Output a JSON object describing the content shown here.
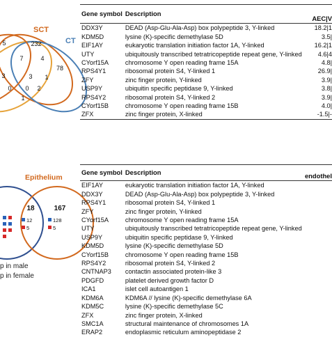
{
  "venn_top": {
    "labels": {
      "sct": "SCT",
      "ct": "CT"
    },
    "numbers": [
      "5",
      "232",
      "7",
      "4",
      "78",
      "3",
      "3",
      "1",
      "0",
      "2",
      "1",
      "0"
    ],
    "colors": {
      "sct": "#d2691e",
      "ct": "#4a7fb5",
      "left": "#e6a33a"
    }
  },
  "venn_bottom": {
    "label": "Epithelium",
    "numbers": [
      "18",
      "167",
      "12",
      "128",
      "5",
      "5"
    ],
    "colors": {
      "epithelium": "#d2691e",
      "left": "#2f4f8f",
      "blue_square": "#2a62b8",
      "red_square": "#d62828"
    }
  },
  "legend": [
    "p in male",
    "p in female"
  ],
  "table1": {
    "headers": [
      "Gene symbol",
      "Description",
      "AEC|V"
    ],
    "rows": [
      {
        "sym": "DDX3Y",
        "desc": "DEAD (Asp-Glu-Ala-Asp) box polypeptide 3, Y-linked",
        "val": "18.2|1"
      },
      {
        "sym": "KDM5D",
        "desc": "lysine (K)-specific demethylase 5D",
        "val": "3.5|"
      },
      {
        "sym": "EIF1AY",
        "desc": "eukaryotic translation initiation factor 1A, Y-linked",
        "val": "16.2|1"
      },
      {
        "sym": "UTY",
        "desc": "ubiquitously transcribed tetratricopeptide repeat gene, Y-linked",
        "val": "4.6|4"
      },
      {
        "sym": "CYorf15A",
        "desc": "chromosome Y open reading frame 15A",
        "val": "4.8|"
      },
      {
        "sym": "RPS4Y1",
        "desc": "ribosomal protein S4, Y-linked 1",
        "val": "26.9|"
      },
      {
        "sym": "ZFY",
        "desc": "zinc finger protein, Y-linked",
        "val": "3.9|"
      },
      {
        "sym": "USP9Y",
        "desc": "ubiquitin specific peptidase 9, Y-linked",
        "val": "3.8|"
      },
      {
        "sym": "RPS4Y2",
        "desc": "ribosomal protein S4, Y-linked 2",
        "val": "3.9|"
      },
      {
        "sym": "CYorf15B",
        "desc": "chromosome Y open reading frame 15B",
        "val": "4.0|"
      },
      {
        "sym": "ZFX",
        "desc": "zinc finger protein, X-linked",
        "val": "-1.5|-"
      }
    ]
  },
  "table2": {
    "headers": [
      "Gene symbol",
      "Description",
      "endothel"
    ],
    "rows": [
      {
        "sym": "EIF1AY",
        "desc": "eukaryotic translation initiation factor 1A, Y-linked"
      },
      {
        "sym": "DDX3Y",
        "desc": "DEAD (Asp-Glu-Ala-Asp) box polypeptide 3, Y-linked"
      },
      {
        "sym": "RPS4Y1",
        "desc": "ribosomal protein S4, Y-linked 1"
      },
      {
        "sym": "ZFY",
        "desc": "zinc finger protein, Y-linked"
      },
      {
        "sym": "CYorf15A",
        "desc": "chromosome Y open reading frame 15A"
      },
      {
        "sym": "UTY",
        "desc": "ubiquitously transcribed tetratricopeptide repeat gene, Y-linked"
      },
      {
        "sym": "USP9Y",
        "desc": "ubiquitin specific peptidase 9, Y-linked"
      },
      {
        "sym": "KDM5D",
        "desc": "lysine (K)-specific demethylase 5D"
      },
      {
        "sym": "CYorf15B",
        "desc": "chromosome Y open reading frame 15B"
      },
      {
        "sym": "RPS4Y2",
        "desc": "ribosomal protein S4, Y-linked 2"
      },
      {
        "sym": "CNTNAP3",
        "desc": "contactin associated protein-like 3"
      },
      {
        "sym": "PDGFD",
        "desc": "platelet derived growth factor D"
      },
      {
        "sym": "ICA1",
        "desc": "islet cell autoantigen 1"
      },
      {
        "sym": "KDM6A",
        "desc": "KDM6A // lysine (K)-specific demethylase 6A"
      },
      {
        "sym": "KDM5C",
        "desc": "lysine (K)-specific demethylase 5C"
      },
      {
        "sym": "ZFX",
        "desc": "zinc finger protein, X-linked"
      },
      {
        "sym": "SMC1A",
        "desc": "structural maintenance of chromosomes 1A"
      },
      {
        "sym": "ERAP2",
        "desc": "endoplasmic reticulum aminopeptidase 2"
      }
    ]
  }
}
